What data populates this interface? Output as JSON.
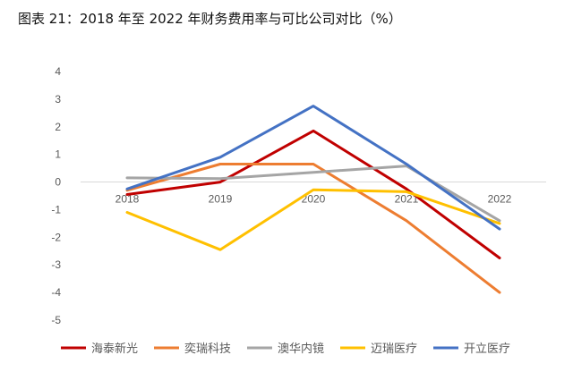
{
  "title": "图表 21：2018 年至 2022 年财务费用率与可比公司对比（%）",
  "chart_data": {
    "type": "line",
    "categories": [
      "2018",
      "2019",
      "2020",
      "2021",
      "2022"
    ],
    "ylim": [
      -5,
      4
    ],
    "yticks": [
      4,
      3,
      2,
      1,
      0,
      -1,
      -2,
      -3,
      -4,
      -5
    ],
    "grid": false,
    "legend_position": "bottom",
    "series": [
      {
        "name": "海泰新光",
        "color": "#C00000",
        "values": [
          -0.45,
          0.0,
          1.85,
          -0.25,
          -2.75
        ]
      },
      {
        "name": "奕瑞科技",
        "color": "#ED7D31",
        "values": [
          -0.3,
          0.65,
          0.65,
          -1.4,
          -4.0
        ]
      },
      {
        "name": "澳华内镜",
        "color": "#A5A5A5",
        "values": [
          0.15,
          0.12,
          0.35,
          0.58,
          -1.4
        ]
      },
      {
        "name": "迈瑞医疗",
        "color": "#FFC000",
        "values": [
          -1.1,
          -2.45,
          -0.28,
          -0.35,
          -1.5
        ]
      },
      {
        "name": "开立医疗",
        "color": "#4472C4",
        "values": [
          -0.25,
          0.9,
          2.75,
          0.65,
          -1.7
        ]
      }
    ]
  }
}
